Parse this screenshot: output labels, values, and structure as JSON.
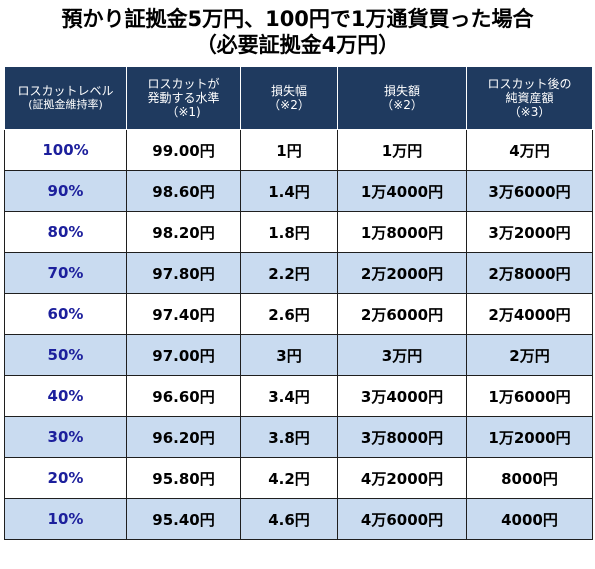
{
  "title": {
    "line1": "預かり証拠金5万円、100円で1万通貨買った場合",
    "line2": "（必要証拠金4万円）"
  },
  "headers": [
    [
      "ロスカットレベル",
      "(証拠金維持率)"
    ],
    [
      "ロスカットが",
      "発動する水準",
      "（※1)"
    ],
    [
      "損失幅",
      "（※2）"
    ],
    [
      "損失額",
      "（※2）"
    ],
    [
      "ロスカット後の",
      "純資産額",
      "（※3）"
    ]
  ],
  "rows": [
    [
      "100%",
      "99.00円",
      "1円",
      "1万円",
      "4万円"
    ],
    [
      "90%",
      "98.60円",
      "1.4円",
      "1万4000円",
      "3万6000円"
    ],
    [
      "80%",
      "98.20円",
      "1.8円",
      "1万8000円",
      "3万2000円"
    ],
    [
      "70%",
      "97.80円",
      "2.2円",
      "2万2000円",
      "2万8000円"
    ],
    [
      "60%",
      "97.40円",
      "2.6円",
      "2万6000円",
      "2万4000円"
    ],
    [
      "50%",
      "97.00円",
      "3円",
      "3万円",
      "2万円"
    ],
    [
      "40%",
      "96.60円",
      "3.4円",
      "3万4000円",
      "1万6000円"
    ],
    [
      "30%",
      "96.20円",
      "3.8円",
      "3万8000円",
      "1万2000円"
    ],
    [
      "20%",
      "95.80円",
      "4.2円",
      "4万2000円",
      "8000円"
    ],
    [
      "10%",
      "95.40円",
      "4.6円",
      "4万6000円",
      "4000円"
    ]
  ],
  "colors": {
    "header_bg": "#1f3a5f",
    "header_text": "#ffffff",
    "stripe_bg": "#c9dbf0",
    "level_text": "#1c1f9c"
  }
}
